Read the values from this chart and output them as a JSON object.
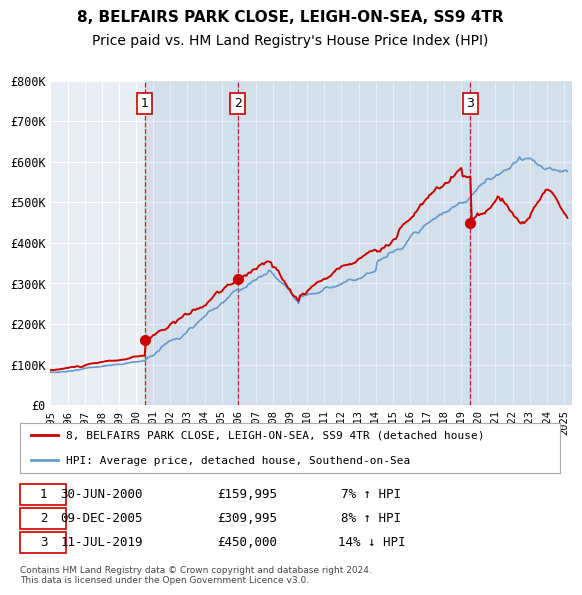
{
  "title": "8, BELFAIRS PARK CLOSE, LEIGH-ON-SEA, SS9 4TR",
  "subtitle": "Price paid vs. HM Land Registry's House Price Index (HPI)",
  "ylabel": "",
  "ylim": [
    0,
    800000
  ],
  "yticks": [
    0,
    100000,
    200000,
    300000,
    400000,
    500000,
    600000,
    700000,
    800000
  ],
  "ytick_labels": [
    "£0",
    "£100K",
    "£200K",
    "£300K",
    "£400K",
    "£500K",
    "£600K",
    "£700K",
    "£800K"
  ],
  "xlim_start": 1995.0,
  "xlim_end": 2025.5,
  "bg_color": "#f0f4f8",
  "plot_bg_color": "#e8eef4",
  "red_color": "#cc0000",
  "blue_color": "#6699cc",
  "vline_color": "#cc0000",
  "grid_color": "#ffffff",
  "sale1_x": 2000.5,
  "sale1_y": 159995,
  "sale1_label": "1",
  "sale1_date": "30-JUN-2000",
  "sale1_price": "£159,995",
  "sale1_hpi": "7% ↑ HPI",
  "sale2_x": 2005.94,
  "sale2_y": 309995,
  "sale2_label": "2",
  "sale2_date": "09-DEC-2005",
  "sale2_price": "£309,995",
  "sale2_hpi": "8% ↑ HPI",
  "sale3_x": 2019.53,
  "sale3_y": 450000,
  "sale3_label": "3",
  "sale3_date": "11-JUL-2019",
  "sale3_price": "£450,000",
  "sale3_hpi": "14% ↓ HPI",
  "legend_line1": "8, BELFAIRS PARK CLOSE, LEIGH-ON-SEA, SS9 4TR (detached house)",
  "legend_line2": "HPI: Average price, detached house, Southend-on-Sea",
  "footnote": "Contains HM Land Registry data © Crown copyright and database right 2024.\nThis data is licensed under the Open Government Licence v3.0.",
  "title_fontsize": 11,
  "subtitle_fontsize": 10
}
